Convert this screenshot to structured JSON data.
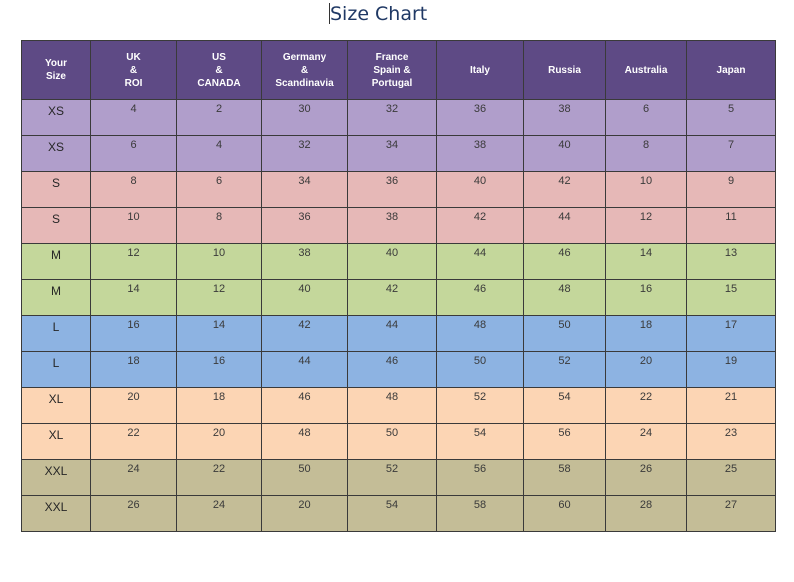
{
  "title": "Size Chart",
  "table": {
    "headers": [
      "Your\nSize",
      "UK\n&\nROI",
      "US\n&\nCANADA",
      "Germany\n&\nScandinavia",
      "France\nSpain &\nPortugal",
      "Italy",
      "Russia",
      "Australia",
      "Japan"
    ],
    "rows": [
      [
        "XS",
        "4",
        "2",
        "30",
        "32",
        "36",
        "38",
        "6",
        "5"
      ],
      [
        "XS",
        "6",
        "4",
        "32",
        "34",
        "38",
        "40",
        "8",
        "7"
      ],
      [
        "S",
        "8",
        "6",
        "34",
        "36",
        "40",
        "42",
        "10",
        "9"
      ],
      [
        "S",
        "10",
        "8",
        "36",
        "38",
        "42",
        "44",
        "12",
        "11"
      ],
      [
        "M",
        "12",
        "10",
        "38",
        "40",
        "44",
        "46",
        "14",
        "13"
      ],
      [
        "M",
        "14",
        "12",
        "40",
        "42",
        "46",
        "48",
        "16",
        "15"
      ],
      [
        "L",
        "16",
        "14",
        "42",
        "44",
        "48",
        "50",
        "18",
        "17"
      ],
      [
        "L",
        "18",
        "16",
        "44",
        "46",
        "50",
        "52",
        "20",
        "19"
      ],
      [
        "XL",
        "20",
        "18",
        "46",
        "48",
        "52",
        "54",
        "22",
        "21"
      ],
      [
        "XL",
        "22",
        "20",
        "48",
        "50",
        "54",
        "56",
        "24",
        "23"
      ],
      [
        "XXL",
        "24",
        "22",
        "50",
        "52",
        "56",
        "58",
        "26",
        "25"
      ],
      [
        "XXL",
        "26",
        "24",
        "20",
        "54",
        "58",
        "60",
        "28",
        "27"
      ]
    ]
  },
  "colors": {
    "header": "#5e4a85",
    "XS": "#b09ecb",
    "S": "#e6b8b7",
    "M": "#c4d79b",
    "L": "#8db3e2",
    "XL": "#fcd5b4",
    "XXL": "#c4bd97"
  }
}
